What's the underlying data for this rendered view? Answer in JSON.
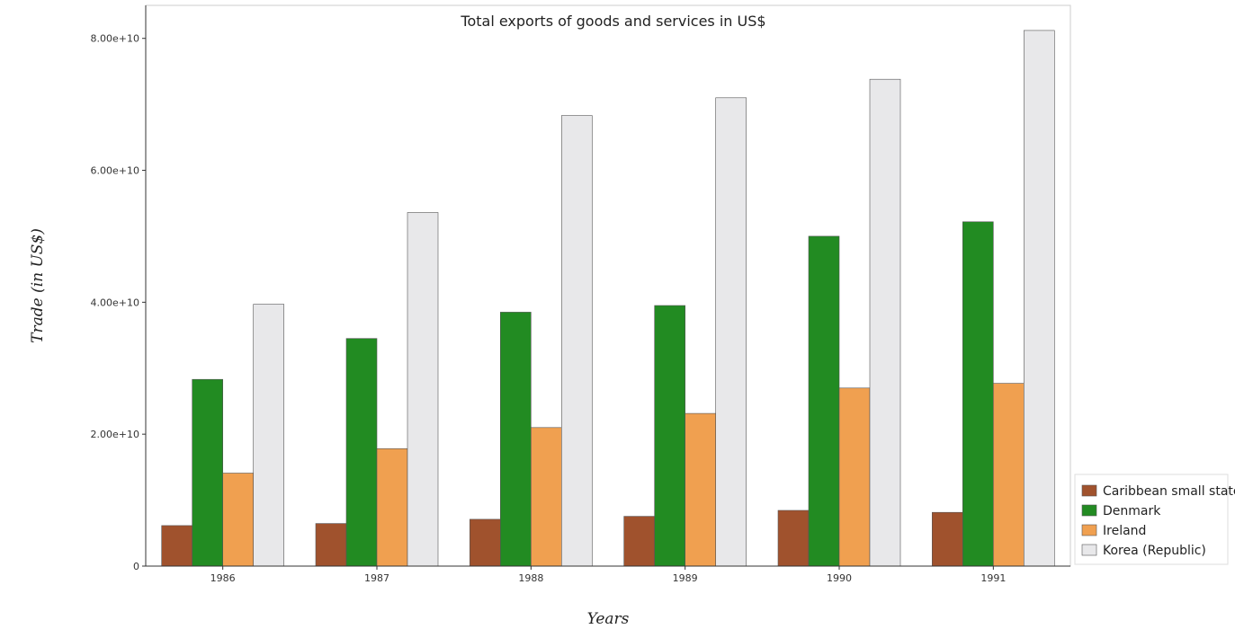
{
  "chart_data": {
    "type": "bar",
    "title": "Total exports of goods and services in US$",
    "xlabel": "Years",
    "ylabel": "Trade (in US$)",
    "categories": [
      "1986",
      "1987",
      "1988",
      "1989",
      "1990",
      "1991"
    ],
    "ylim": [
      0,
      85000000000
    ],
    "yticks": [
      0,
      20000000000,
      40000000000,
      60000000000,
      80000000000
    ],
    "ytick_labels": [
      "0",
      "2.00e+10",
      "4.00e+10",
      "6.00e+10",
      "8.00e+10"
    ],
    "grid": false,
    "legend_position": "bottom-right",
    "series": [
      {
        "name": "Caribbean small states",
        "color": "#a0522d",
        "values": [
          6150000000,
          6450000000,
          7100000000,
          7550000000,
          8450000000,
          8150000000
        ]
      },
      {
        "name": "Denmark",
        "color": "#228b22",
        "values": [
          28300000000,
          34500000000,
          38500000000,
          39500000000,
          50000000000,
          52200000000
        ]
      },
      {
        "name": "Ireland",
        "color": "#f0a050",
        "values": [
          14100000000,
          17800000000,
          21000000000,
          23150000000,
          27000000000,
          27700000000
        ]
      },
      {
        "name": "Korea (Republic)",
        "color": "#e8e8ea",
        "values": [
          39700000000,
          53600000000,
          68300000000,
          71000000000,
          73800000000,
          81200000000
        ]
      }
    ]
  }
}
